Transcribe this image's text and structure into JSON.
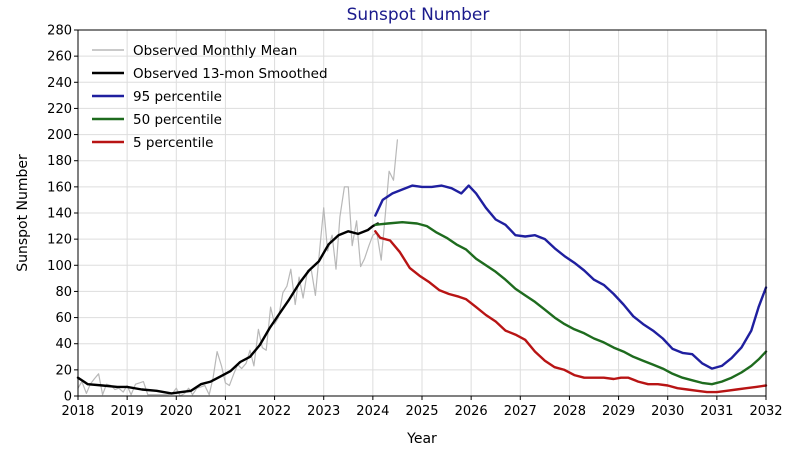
{
  "chart_data": {
    "type": "line",
    "title": "Sunspot Number",
    "xlabel": "Year",
    "ylabel": "Sunspot Number",
    "xlim": [
      2018,
      2032
    ],
    "ylim": [
      0,
      280
    ],
    "x_ticks": [
      "2018",
      "2019",
      "2020",
      "2021",
      "2022",
      "2023",
      "2024",
      "2025",
      "2026",
      "2027",
      "2028",
      "2029",
      "2030",
      "2031",
      "2032"
    ],
    "y_ticks": [
      "0",
      "20",
      "40",
      "60",
      "80",
      "100",
      "120",
      "140",
      "160",
      "180",
      "200",
      "220",
      "240",
      "260",
      "280"
    ],
    "grid": true,
    "legend_position": "top-left",
    "series": [
      {
        "name": "Observed Monthly Mean",
        "color": "#b8b8b8",
        "points": [
          [
            2018.0,
            6
          ],
          [
            2018.08,
            11
          ],
          [
            2018.17,
            2
          ],
          [
            2018.25,
            9
          ],
          [
            2018.33,
            13
          ],
          [
            2018.42,
            17
          ],
          [
            2018.5,
            1
          ],
          [
            2018.58,
            9
          ],
          [
            2018.67,
            8
          ],
          [
            2018.75,
            5
          ],
          [
            2018.83,
            6
          ],
          [
            2018.92,
            3
          ],
          [
            2019.0,
            8
          ],
          [
            2019.08,
            1
          ],
          [
            2019.17,
            9
          ],
          [
            2019.25,
            10
          ],
          [
            2019.33,
            11
          ],
          [
            2019.42,
            1
          ],
          [
            2019.5,
            1
          ],
          [
            2019.58,
            1
          ],
          [
            2019.67,
            1
          ],
          [
            2019.75,
            1
          ],
          [
            2019.83,
            1
          ],
          [
            2019.92,
            2
          ],
          [
            2020.0,
            6
          ],
          [
            2020.08,
            0
          ],
          [
            2020.17,
            2
          ],
          [
            2020.25,
            6
          ],
          [
            2020.33,
            1
          ],
          [
            2020.42,
            6
          ],
          [
            2020.5,
            7
          ],
          [
            2020.58,
            8
          ],
          [
            2020.67,
            1
          ],
          [
            2020.75,
            14
          ],
          [
            2020.83,
            34
          ],
          [
            2020.92,
            23
          ],
          [
            2021.0,
            10
          ],
          [
            2021.08,
            8
          ],
          [
            2021.17,
            17
          ],
          [
            2021.25,
            24
          ],
          [
            2021.33,
            21
          ],
          [
            2021.42,
            25
          ],
          [
            2021.5,
            35
          ],
          [
            2021.58,
            23
          ],
          [
            2021.67,
            51
          ],
          [
            2021.75,
            37
          ],
          [
            2021.83,
            35
          ],
          [
            2021.92,
            68
          ],
          [
            2022.0,
            55
          ],
          [
            2022.08,
            60
          ],
          [
            2022.17,
            79
          ],
          [
            2022.25,
            84
          ],
          [
            2022.33,
            97
          ],
          [
            2022.42,
            70
          ],
          [
            2022.5,
            91
          ],
          [
            2022.58,
            75
          ],
          [
            2022.67,
            96
          ],
          [
            2022.75,
            96
          ],
          [
            2022.83,
            77
          ],
          [
            2022.92,
            113
          ],
          [
            2023.0,
            144
          ],
          [
            2023.08,
            111
          ],
          [
            2023.17,
            123
          ],
          [
            2023.25,
            97
          ],
          [
            2023.33,
            137
          ],
          [
            2023.42,
            160
          ],
          [
            2023.5,
            160
          ],
          [
            2023.58,
            115
          ],
          [
            2023.67,
            134
          ],
          [
            2023.75,
            99
          ],
          [
            2023.83,
            105
          ],
          [
            2023.92,
            115
          ],
          [
            2024.0,
            123
          ],
          [
            2024.08,
            125
          ],
          [
            2024.17,
            104
          ],
          [
            2024.25,
            137
          ],
          [
            2024.33,
            172
          ],
          [
            2024.42,
            165
          ],
          [
            2024.5,
            196
          ]
        ]
      },
      {
        "name": "Observed 13-mon Smoothed",
        "color": "#000000",
        "points": [
          [
            2018.0,
            14
          ],
          [
            2018.2,
            9
          ],
          [
            2018.5,
            8
          ],
          [
            2018.8,
            7
          ],
          [
            2019.0,
            7
          ],
          [
            2019.3,
            5
          ],
          [
            2019.6,
            4
          ],
          [
            2019.9,
            2
          ],
          [
            2020.1,
            3
          ],
          [
            2020.3,
            4
          ],
          [
            2020.5,
            9
          ],
          [
            2020.7,
            11
          ],
          [
            2020.9,
            15
          ],
          [
            2021.1,
            19
          ],
          [
            2021.3,
            26
          ],
          [
            2021.5,
            30
          ],
          [
            2021.7,
            39
          ],
          [
            2021.9,
            52
          ],
          [
            2022.1,
            63
          ],
          [
            2022.3,
            74
          ],
          [
            2022.5,
            86
          ],
          [
            2022.7,
            96
          ],
          [
            2022.9,
            103
          ],
          [
            2023.1,
            116
          ],
          [
            2023.3,
            123
          ],
          [
            2023.5,
            126
          ],
          [
            2023.7,
            124
          ],
          [
            2023.9,
            127
          ],
          [
            2024.0,
            130
          ],
          [
            2024.1,
            132
          ]
        ]
      },
      {
        "name": "95 percentile",
        "color": "#1f1f9f",
        "points": [
          [
            2024.05,
            138
          ],
          [
            2024.2,
            150
          ],
          [
            2024.4,
            155
          ],
          [
            2024.6,
            158
          ],
          [
            2024.8,
            161
          ],
          [
            2025.0,
            160
          ],
          [
            2025.2,
            160
          ],
          [
            2025.4,
            161
          ],
          [
            2025.6,
            159
          ],
          [
            2025.8,
            155
          ],
          [
            2025.95,
            161
          ],
          [
            2026.1,
            155
          ],
          [
            2026.3,
            144
          ],
          [
            2026.5,
            135
          ],
          [
            2026.7,
            131
          ],
          [
            2026.9,
            123
          ],
          [
            2027.1,
            122
          ],
          [
            2027.3,
            123
          ],
          [
            2027.5,
            120
          ],
          [
            2027.7,
            113
          ],
          [
            2027.9,
            107
          ],
          [
            2028.1,
            102
          ],
          [
            2028.3,
            96
          ],
          [
            2028.5,
            89
          ],
          [
            2028.7,
            85
          ],
          [
            2028.9,
            78
          ],
          [
            2029.1,
            70
          ],
          [
            2029.3,
            61
          ],
          [
            2029.5,
            55
          ],
          [
            2029.7,
            50
          ],
          [
            2029.9,
            44
          ],
          [
            2030.1,
            36
          ],
          [
            2030.3,
            33
          ],
          [
            2030.5,
            32
          ],
          [
            2030.7,
            25
          ],
          [
            2030.9,
            21
          ],
          [
            2031.1,
            23
          ],
          [
            2031.3,
            29
          ],
          [
            2031.5,
            37
          ],
          [
            2031.7,
            50
          ],
          [
            2031.85,
            68
          ],
          [
            2032.0,
            83
          ]
        ]
      },
      {
        "name": "50 percentile",
        "color": "#1e6b1e",
        "points": [
          [
            2024.05,
            131
          ],
          [
            2024.3,
            132
          ],
          [
            2024.6,
            133
          ],
          [
            2024.9,
            132
          ],
          [
            2025.1,
            130
          ],
          [
            2025.3,
            125
          ],
          [
            2025.5,
            121
          ],
          [
            2025.7,
            116
          ],
          [
            2025.9,
            112
          ],
          [
            2026.1,
            105
          ],
          [
            2026.3,
            100
          ],
          [
            2026.5,
            95
          ],
          [
            2026.7,
            89
          ],
          [
            2026.9,
            82
          ],
          [
            2027.1,
            77
          ],
          [
            2027.3,
            72
          ],
          [
            2027.5,
            66
          ],
          [
            2027.7,
            60
          ],
          [
            2027.9,
            55
          ],
          [
            2028.1,
            51
          ],
          [
            2028.3,
            48
          ],
          [
            2028.5,
            44
          ],
          [
            2028.7,
            41
          ],
          [
            2028.9,
            37
          ],
          [
            2029.1,
            34
          ],
          [
            2029.3,
            30
          ],
          [
            2029.5,
            27
          ],
          [
            2029.7,
            24
          ],
          [
            2029.9,
            21
          ],
          [
            2030.1,
            17
          ],
          [
            2030.3,
            14
          ],
          [
            2030.5,
            12
          ],
          [
            2030.7,
            10
          ],
          [
            2030.9,
            9
          ],
          [
            2031.1,
            11
          ],
          [
            2031.3,
            14
          ],
          [
            2031.5,
            18
          ],
          [
            2031.7,
            23
          ],
          [
            2031.85,
            28
          ],
          [
            2032.0,
            34
          ]
        ]
      },
      {
        "name": "5 percentile",
        "color": "#b81414",
        "points": [
          [
            2024.05,
            126
          ],
          [
            2024.15,
            121
          ],
          [
            2024.35,
            119
          ],
          [
            2024.55,
            110
          ],
          [
            2024.75,
            98
          ],
          [
            2024.95,
            92
          ],
          [
            2025.15,
            87
          ],
          [
            2025.35,
            81
          ],
          [
            2025.55,
            78
          ],
          [
            2025.75,
            76
          ],
          [
            2025.9,
            74
          ],
          [
            2026.1,
            68
          ],
          [
            2026.3,
            62
          ],
          [
            2026.5,
            57
          ],
          [
            2026.7,
            50
          ],
          [
            2026.9,
            47
          ],
          [
            2027.1,
            43
          ],
          [
            2027.3,
            34
          ],
          [
            2027.5,
            27
          ],
          [
            2027.7,
            22
          ],
          [
            2027.9,
            20
          ],
          [
            2028.1,
            16
          ],
          [
            2028.3,
            14
          ],
          [
            2028.5,
            14
          ],
          [
            2028.7,
            14
          ],
          [
            2028.9,
            13
          ],
          [
            2029.05,
            14
          ],
          [
            2029.2,
            14
          ],
          [
            2029.4,
            11
          ],
          [
            2029.6,
            9
          ],
          [
            2029.8,
            9
          ],
          [
            2030.0,
            8
          ],
          [
            2030.2,
            6
          ],
          [
            2030.4,
            5
          ],
          [
            2030.6,
            4
          ],
          [
            2030.8,
            3
          ],
          [
            2031.0,
            3
          ],
          [
            2031.2,
            4
          ],
          [
            2031.4,
            5
          ],
          [
            2031.6,
            6
          ],
          [
            2031.8,
            7
          ],
          [
            2032.0,
            8
          ]
        ]
      }
    ]
  }
}
